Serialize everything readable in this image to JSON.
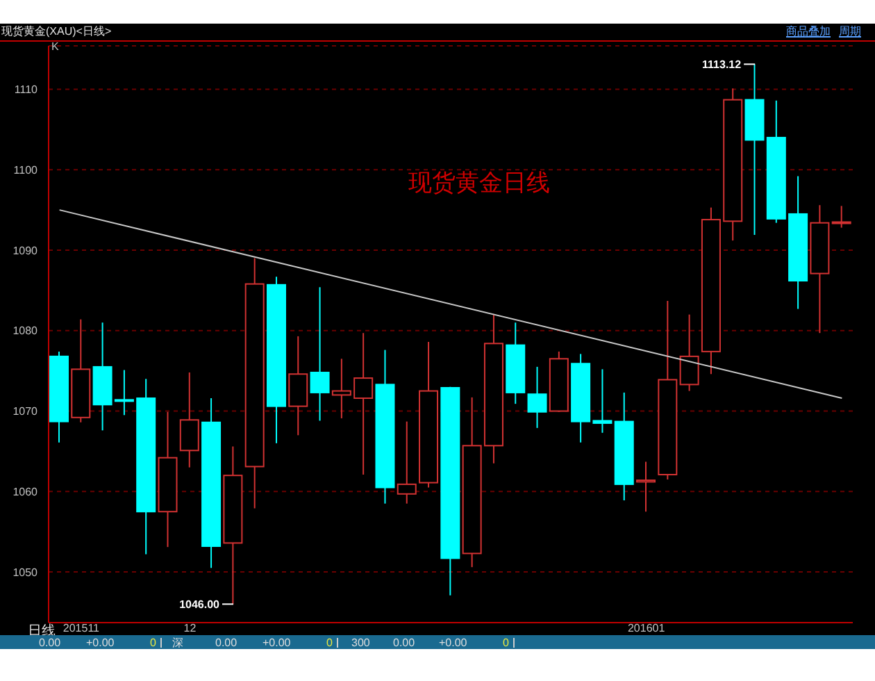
{
  "chart_data": {
    "type": "candlestick",
    "title": "现货黄金(XAU)<日线>",
    "categories": [
      null,
      "201511",
      null,
      null,
      null,
      null,
      "12",
      null,
      null,
      null,
      null,
      null,
      null,
      null,
      null,
      null,
      null,
      null,
      null,
      null,
      null,
      null,
      null,
      null,
      null,
      null,
      null,
      "201601",
      null,
      null,
      null,
      null,
      null,
      null,
      null,
      null,
      null
    ],
    "ohlc": [
      [
        1076.8,
        1077.4,
        1066.1,
        1068.7
      ],
      [
        1069.2,
        1081.4,
        1068.6,
        1075.2
      ],
      [
        1075.5,
        1081.0,
        1067.6,
        1070.8
      ],
      [
        1071.4,
        1075.1,
        1069.5,
        1071.3
      ],
      [
        1071.6,
        1074.0,
        1052.2,
        1057.5
      ],
      [
        1057.5,
        1069.9,
        1053.1,
        1064.2
      ],
      [
        1065.1,
        1074.8,
        1063.0,
        1068.9
      ],
      [
        1068.6,
        1071.6,
        1050.5,
        1053.2
      ],
      [
        1053.6,
        1065.6,
        1046.0,
        1062.0
      ],
      [
        1063.1,
        1089.0,
        1057.9,
        1085.8
      ],
      [
        1085.7,
        1086.7,
        1066.0,
        1070.6
      ],
      [
        1070.6,
        1079.3,
        1067.0,
        1074.6
      ],
      [
        1074.8,
        1085.4,
        1068.8,
        1072.3
      ],
      [
        1072.0,
        1076.5,
        1069.1,
        1072.5
      ],
      [
        1071.6,
        1079.7,
        1062.1,
        1074.1
      ],
      [
        1073.3,
        1077.6,
        1058.5,
        1060.5
      ],
      [
        1059.7,
        1068.7,
        1058.5,
        1060.9
      ],
      [
        1061.1,
        1078.6,
        1060.5,
        1072.5
      ],
      [
        1072.9,
        1073.0,
        1047.1,
        1051.7
      ],
      [
        1052.3,
        1071.7,
        1050.6,
        1065.7
      ],
      [
        1065.7,
        1082.0,
        1063.5,
        1078.4
      ],
      [
        1078.2,
        1081.0,
        1070.9,
        1072.3
      ],
      [
        1072.1,
        1075.5,
        1067.9,
        1069.9
      ],
      [
        1070.0,
        1077.4,
        1069.9,
        1076.5
      ],
      [
        1075.9,
        1077.1,
        1066.1,
        1068.7
      ],
      [
        1068.8,
        1075.2,
        1067.3,
        1068.5
      ],
      [
        1068.7,
        1072.3,
        1058.9,
        1060.9
      ],
      [
        1061.2,
        1063.7,
        1057.5,
        1061.4
      ],
      [
        1062.1,
        1083.7,
        1061.5,
        1073.9
      ],
      [
        1073.3,
        1082.0,
        1072.5,
        1076.8
      ],
      [
        1077.4,
        1095.3,
        1074.6,
        1093.8
      ],
      [
        1093.6,
        1110.1,
        1091.2,
        1108.7
      ],
      [
        1108.7,
        1113.12,
        1091.9,
        1103.7
      ],
      [
        1104.0,
        1108.6,
        1093.4,
        1093.9
      ],
      [
        1094.5,
        1099.2,
        1082.7,
        1086.2
      ],
      [
        1087.1,
        1095.6,
        1079.7,
        1093.4
      ],
      [
        1093.4,
        1095.5,
        1092.8,
        1093.5
      ]
    ],
    "colors": [
      "#00ffff",
      "#d23232",
      "#00ffff",
      "#00ffff",
      "#00ffff",
      "#d23232",
      "#d23232",
      "#00ffff",
      "#d23232",
      "#d23232",
      "#00ffff",
      "#d23232",
      "#00ffff",
      "#d23232",
      "#d23232",
      "#00ffff",
      "#d23232",
      "#d23232",
      "#00ffff",
      "#d23232",
      "#d23232",
      "#00ffff",
      "#00ffff",
      "#d23232",
      "#00ffff",
      "#00ffff",
      "#00ffff",
      "#d23232",
      "#d23232",
      "#d23232",
      "#d23232",
      "#d23232",
      "#00ffff",
      "#00ffff",
      "#00ffff",
      "#d23232",
      "#d23232"
    ],
    "series": [
      {
        "type": "line",
        "color": "#c8c8c8",
        "values": [
          1095.0,
          null,
          null,
          null,
          null,
          null,
          null,
          null,
          null,
          null,
          null,
          null,
          null,
          null,
          null,
          null,
          null,
          null,
          null,
          null,
          null,
          null,
          null,
          null,
          null,
          null,
          null,
          null,
          null,
          null,
          null,
          null,
          null,
          null,
          null,
          null,
          1071.6
        ]
      }
    ],
    "ylim": [
      1043.7,
      1115.4
    ],
    "yticks": [
      1050,
      1060,
      1070,
      1080,
      1090,
      1100,
      1110
    ],
    "grid": "y",
    "annotations": [
      "K",
      "日线",
      "商品叠加",
      "周期",
      "现货黄金日线",
      "0.00",
      "+0.00",
      "0",
      "深",
      "0.00",
      "+0.00",
      "0",
      "300",
      "0.00",
      "+0.00",
      "0",
      "1113.12",
      "1046.00"
    ]
  }
}
